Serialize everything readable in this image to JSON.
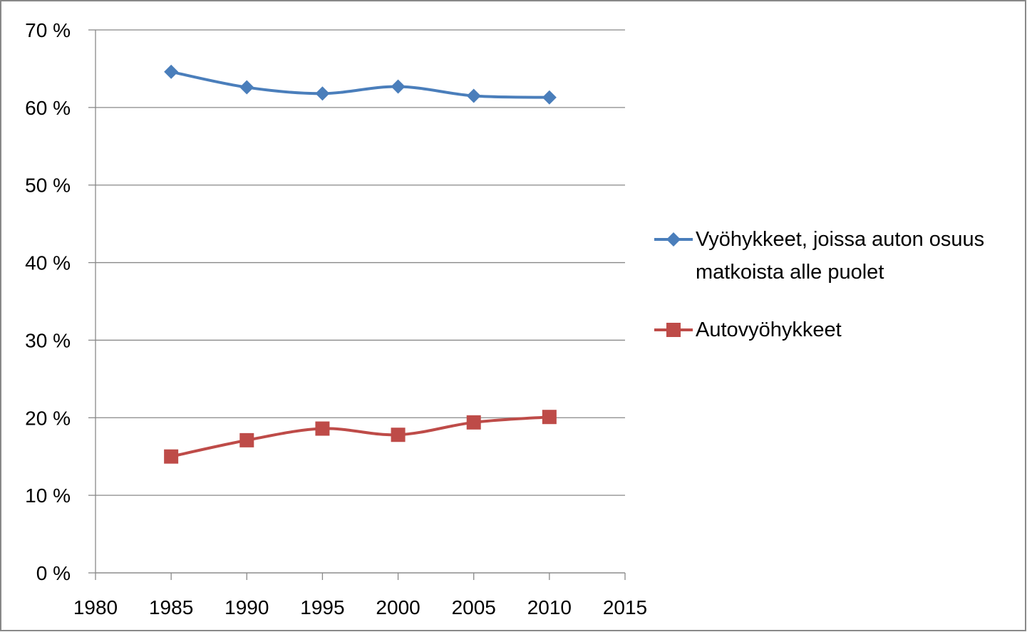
{
  "chart_data": {
    "type": "line",
    "x": [
      1985,
      1990,
      1995,
      2000,
      2005,
      2010
    ],
    "series": [
      {
        "name": "Vyöhykkeet, joissa auton osuus matkoista alle puolet",
        "color": "#4a7ebb",
        "marker": "diamond",
        "values": [
          64.6,
          62.6,
          61.8,
          62.7,
          61.5,
          61.3
        ]
      },
      {
        "name": "Autovyöhykkeet",
        "color": "#be4b48",
        "marker": "square",
        "values": [
          15.0,
          17.1,
          18.6,
          17.8,
          19.4,
          20.1
        ]
      }
    ],
    "xlim": [
      1980,
      2015
    ],
    "xticks": [
      1980,
      1985,
      1990,
      1995,
      2000,
      2005,
      2010,
      2015
    ],
    "ylim": [
      0,
      70
    ],
    "yticks": [
      {
        "value": 0,
        "label": "0 %"
      },
      {
        "value": 10,
        "label": "10 %"
      },
      {
        "value": 20,
        "label": "20 %"
      },
      {
        "value": 30,
        "label": "30 %"
      },
      {
        "value": 40,
        "label": "40 %"
      },
      {
        "value": 50,
        "label": "50 %"
      },
      {
        "value": 60,
        "label": "60 %"
      },
      {
        "value": 70,
        "label": "70 %"
      }
    ],
    "grid": true,
    "legend": "right"
  }
}
